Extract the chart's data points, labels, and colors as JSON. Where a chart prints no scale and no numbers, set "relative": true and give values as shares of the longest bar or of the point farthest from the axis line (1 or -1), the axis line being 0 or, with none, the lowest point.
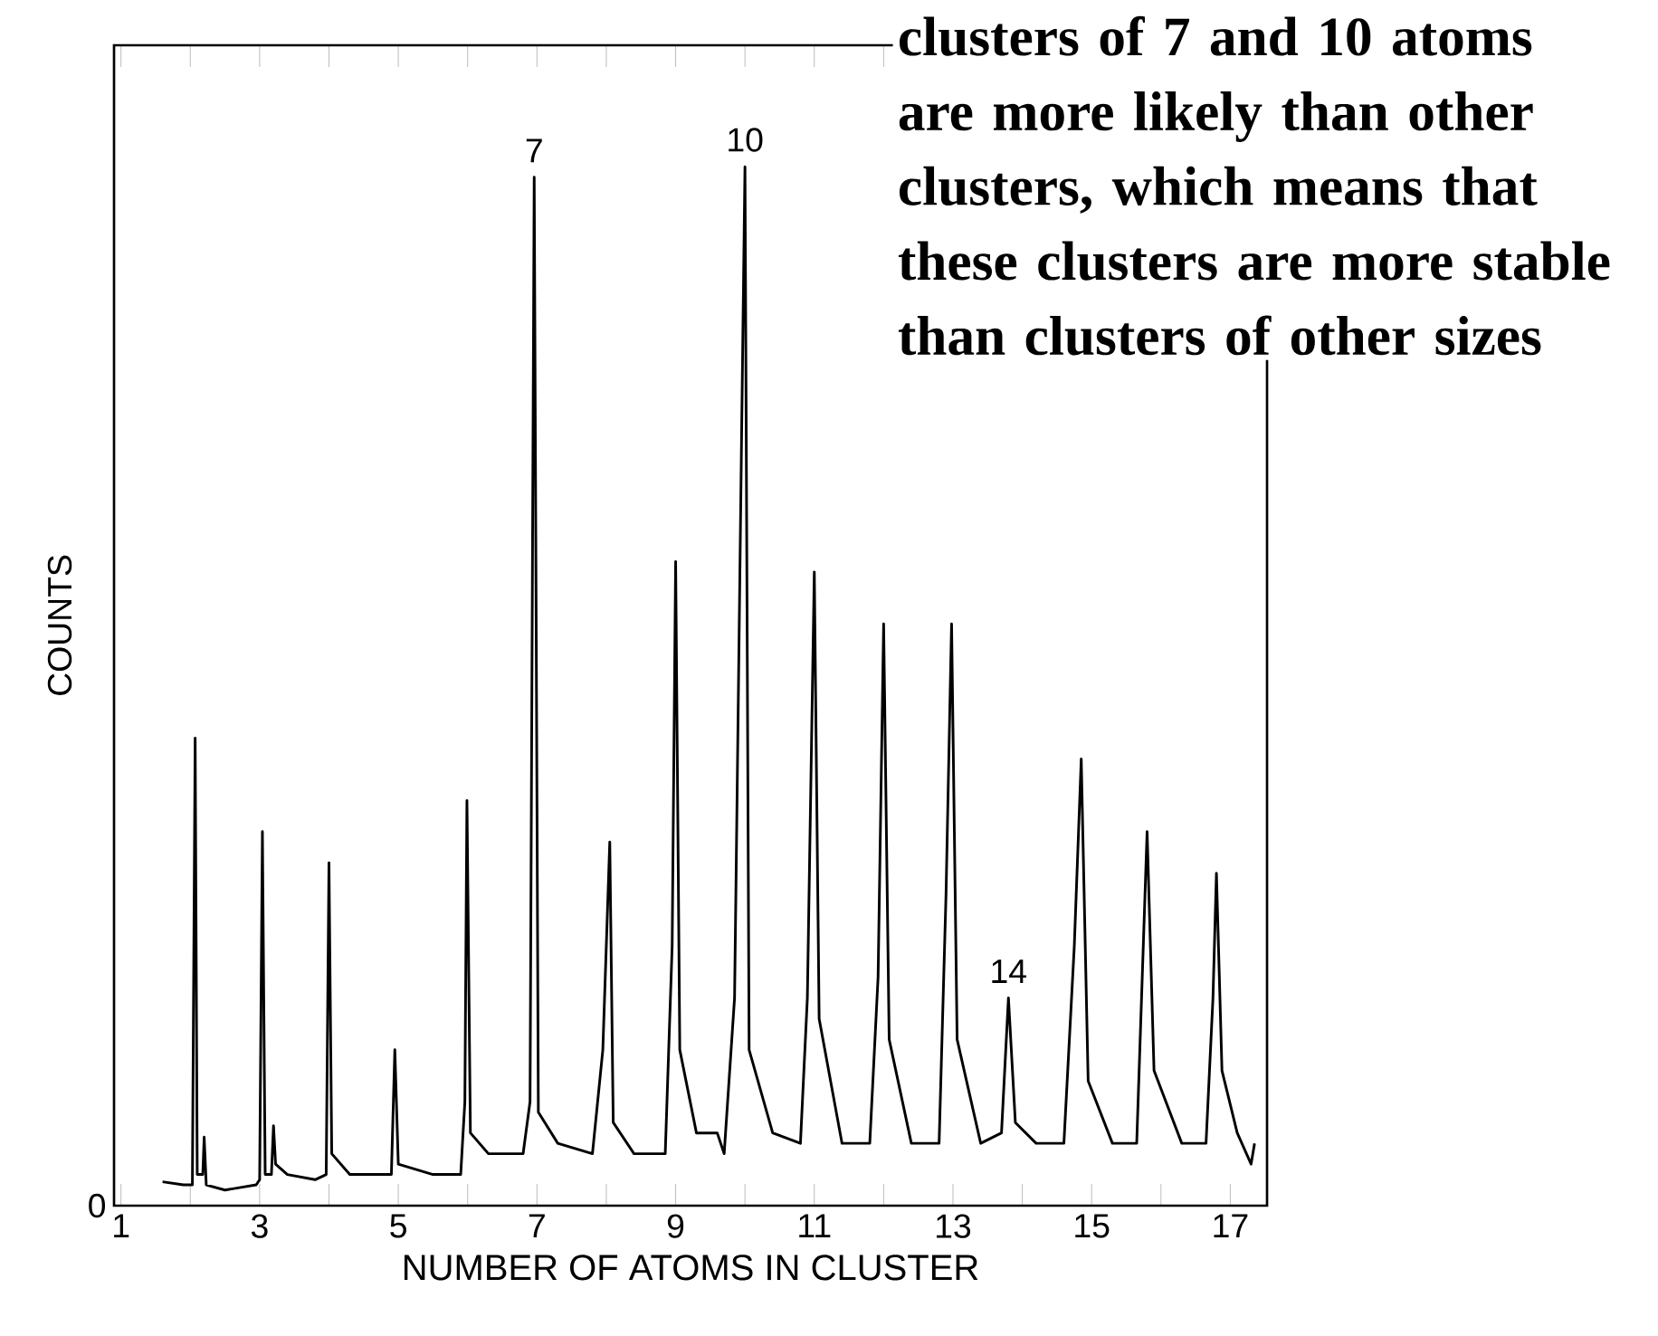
{
  "chart_data": {
    "type": "line",
    "relative": true,
    "xlabel": "NUMBER OF ATOMS IN CLUSTER",
    "ylabel": "COUNTS",
    "xlim": [
      0.9,
      17.53
    ],
    "xticks": [
      1,
      {
        "value": 2,
        "label": null
      },
      3,
      {
        "value": 4,
        "label": null
      },
      5,
      {
        "value": 6,
        "label": null
      },
      7,
      {
        "value": 8,
        "label": null
      },
      9,
      {
        "value": 10,
        "label": null
      },
      11,
      {
        "value": 12,
        "label": null
      },
      13,
      {
        "value": 14,
        "label": null
      },
      15,
      {
        "value": 16,
        "label": null
      },
      17
    ],
    "series": [
      {
        "color": "#000000",
        "x": [
          1.6,
          1.9,
          2.03,
          2.07,
          2.1,
          2.18,
          2.2,
          2.23,
          2.5,
          2.95,
          3.0,
          3.04,
          3.08,
          3.17,
          3.2,
          3.23,
          3.4,
          3.8,
          3.96,
          4.0,
          4.04,
          4.3,
          4.5,
          4.9,
          4.95,
          5.0,
          5.5,
          5.9,
          5.96,
          5.99,
          6.04,
          6.3,
          6.8,
          6.9,
          6.96,
          7.02,
          7.3,
          7.8,
          7.95,
          8.05,
          8.1,
          8.4,
          8.85,
          8.95,
          9.0,
          9.06,
          9.3,
          9.6,
          9.7,
          9.85,
          10.0,
          10.06,
          10.4,
          10.8,
          10.9,
          11.0,
          11.07,
          11.4,
          11.8,
          11.92,
          12.0,
          12.08,
          12.4,
          12.8,
          12.9,
          12.98,
          13.06,
          13.4,
          13.7,
          13.8,
          13.9,
          14.2,
          14.6,
          14.75,
          14.85,
          14.95,
          15.3,
          15.65,
          15.8,
          15.9,
          16.3,
          16.65,
          16.75,
          16.8,
          16.88,
          17.1,
          17.3,
          17.35
        ],
        "values": [
          0.023,
          0.02,
          0.02,
          0.45,
          0.03,
          0.03,
          0.066,
          0.02,
          0.015,
          0.02,
          0.025,
          0.36,
          0.03,
          0.03,
          0.077,
          0.04,
          0.03,
          0.025,
          0.03,
          0.33,
          0.05,
          0.03,
          0.03,
          0.03,
          0.15,
          0.04,
          0.03,
          0.03,
          0.1,
          0.39,
          0.07,
          0.05,
          0.05,
          0.1,
          0.99,
          0.09,
          0.06,
          0.05,
          0.15,
          0.35,
          0.08,
          0.05,
          0.05,
          0.25,
          0.62,
          0.15,
          0.07,
          0.07,
          0.05,
          0.2,
          1.0,
          0.15,
          0.07,
          0.06,
          0.2,
          0.61,
          0.18,
          0.06,
          0.06,
          0.22,
          0.56,
          0.16,
          0.06,
          0.06,
          0.3,
          0.56,
          0.16,
          0.06,
          0.07,
          0.2,
          0.08,
          0.06,
          0.06,
          0.25,
          0.43,
          0.12,
          0.06,
          0.06,
          0.36,
          0.13,
          0.06,
          0.06,
          0.2,
          0.32,
          0.13,
          0.07,
          0.04,
          0.06
        ]
      }
    ],
    "annotations": [
      {
        "text": "7",
        "x": 6.96,
        "y": 0.99
      },
      {
        "text": "10",
        "x": 10.0,
        "y": 1.0
      },
      {
        "text": "14",
        "x": 13.8,
        "y": 0.2
      },
      "0",
      "clusters of 7 and 10 atoms are more likely than other clusters, which means that these clusters are more stable than clusters of other sizes"
    ]
  }
}
